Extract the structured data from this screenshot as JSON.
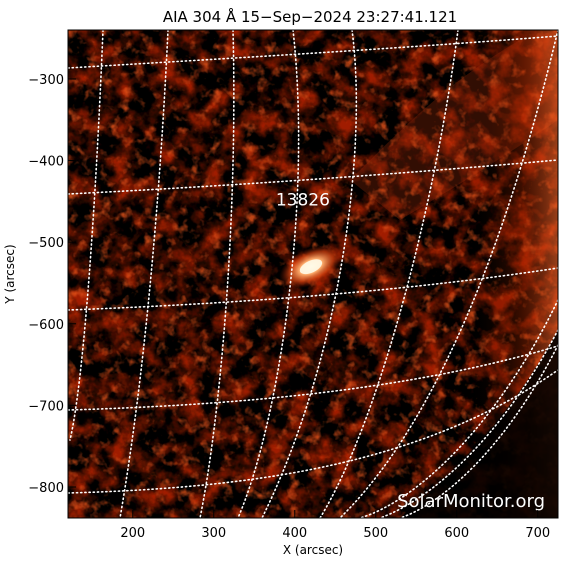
{
  "title": "AIA 304 Å 15−Sep−2024 23:27:41.121",
  "x_axis": {
    "label": "X (arcsec)",
    "range": [
      120,
      725
    ],
    "ticks": [
      200,
      300,
      400,
      500,
      600,
      700
    ]
  },
  "y_axis": {
    "label": "Y (arcsec)",
    "range": [
      -838,
      -240
    ],
    "ticks": [
      -300,
      -400,
      -500,
      -600,
      -700,
      -800
    ]
  },
  "active_region": {
    "label": "13826",
    "x": 410,
    "y": -448
  },
  "bright_kernel": {
    "x": 420,
    "y": -530
  },
  "watermark": "SolarMonitor.org",
  "colors": {
    "background": "#000000",
    "plasma_dark": "#5a0a00",
    "plasma_mid": "#b42400",
    "plasma_bright": "#ff7a3a",
    "plasma_hot": "#fff0c8",
    "grid": "#ffffff"
  }
}
